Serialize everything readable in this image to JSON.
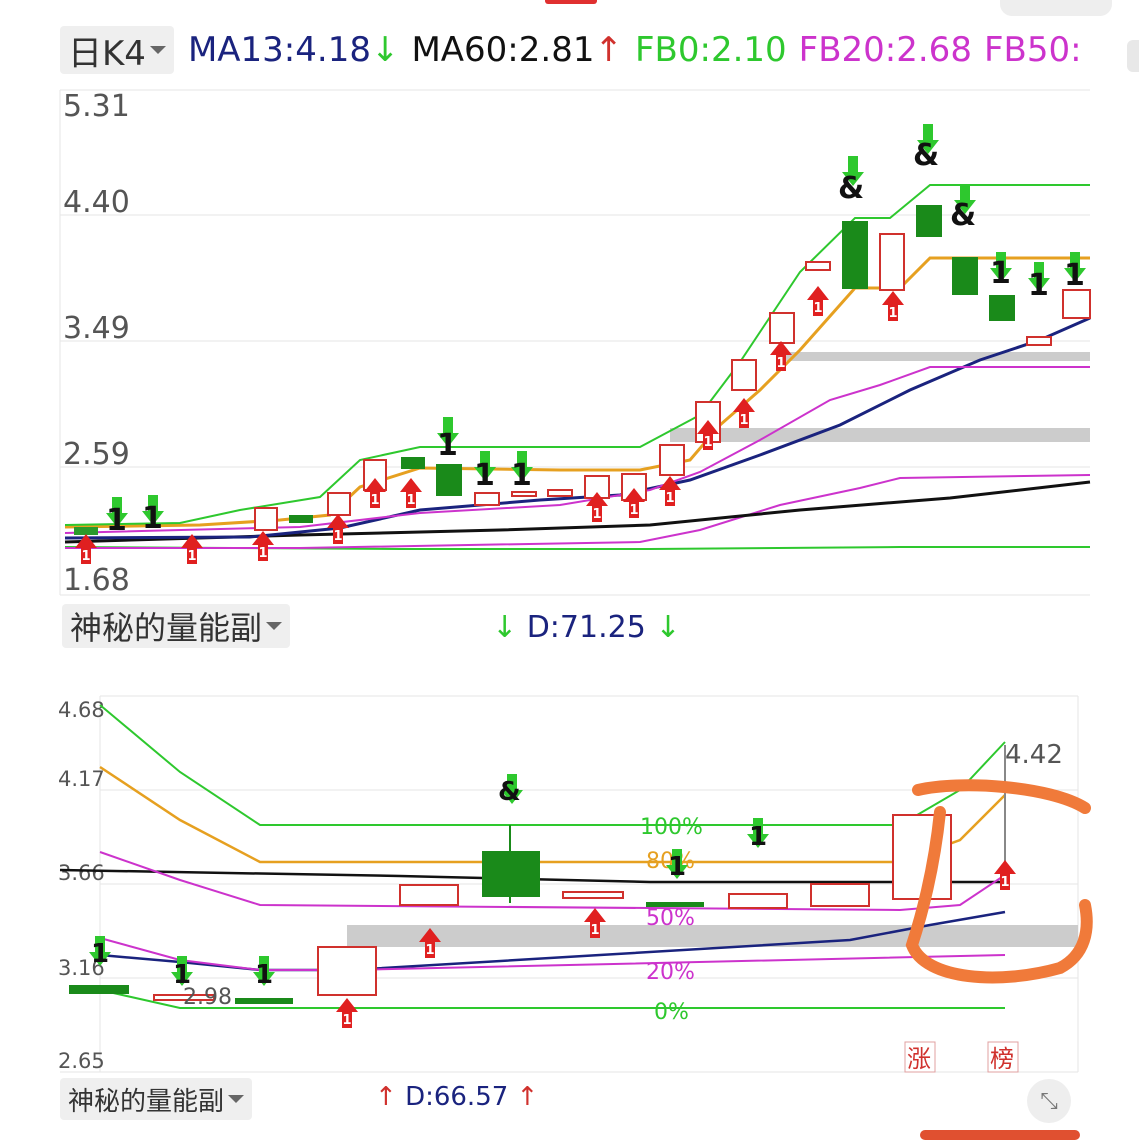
{
  "header": {
    "period_label": "日K4",
    "ma13_text": "MA13:4.18",
    "ma13_arrow": "↓",
    "ma60_text": "MA60:2.81",
    "ma60_arrow": "↑",
    "fb0_text": "FB0:2.10",
    "fb20_text": "FB20:2.68",
    "fb50_text": "FB50:"
  },
  "main_chart_axis": [
    "5.31",
    "4.40",
    "3.49",
    "2.59",
    "1.68"
  ],
  "panel1": {
    "label": "神秘的量能副",
    "indicator_prefix": "↓",
    "indicator_text": "D:71.25",
    "indicator_suffix": "↓"
  },
  "lower_chart": {
    "axis": [
      "4.68",
      "4.17",
      "3.66",
      "3.16",
      "2.65"
    ],
    "max_label": "4.42",
    "min_label": "2.98",
    "pct_labels": [
      "100%",
      "80%",
      "50%",
      "20%",
      "0%"
    ],
    "marker_zhang": "涨",
    "marker_bang": "榜"
  },
  "panel2": {
    "label": "神秘的量能副",
    "indicator_prefix": "↑",
    "indicator_text": "D:66.57",
    "indicator_suffix": "↑"
  },
  "icons": {
    "signal_one": "1",
    "signal_amp": "&"
  },
  "colors": {
    "ma13_blue": "#1a237e",
    "ma60_black": "#111111",
    "fb0_green": "#2ec82e",
    "fb20_magenta": "#cc33cc",
    "orange_line": "#e6a020",
    "candle_red": "#d0312d",
    "candle_green": "#1a8a1a",
    "zone_gray": "#cccccc",
    "annotation_orange": "#f07a3a"
  }
}
